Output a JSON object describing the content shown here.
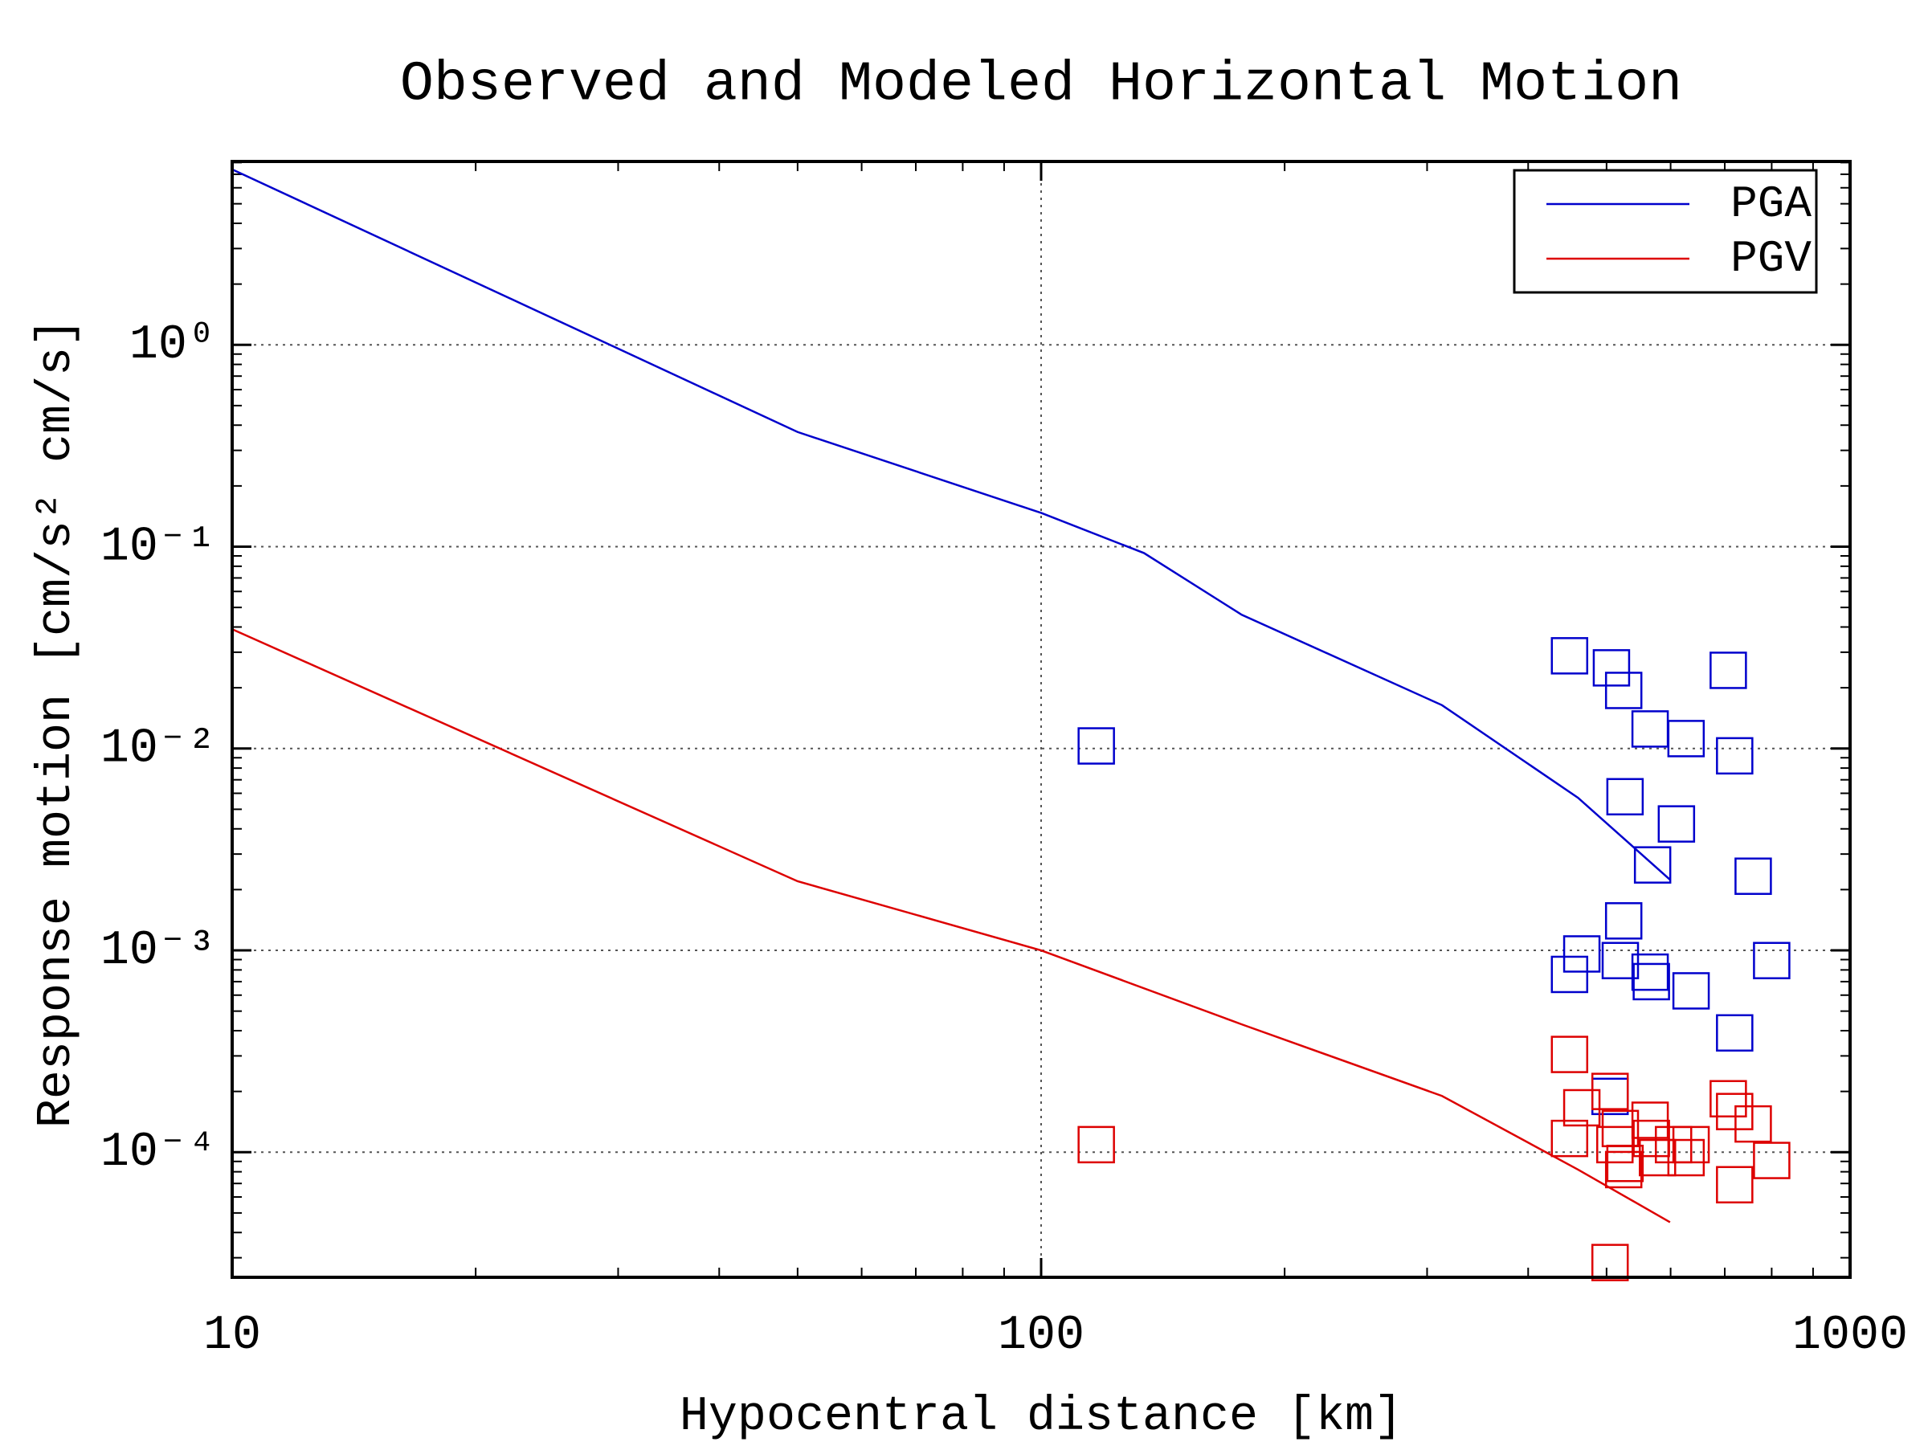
{
  "chart_data": {
    "type": "line",
    "title": "Observed and Modeled Horizontal Motion",
    "x_label": "Hypocentral distance [km]",
    "y_label": "Response motion [cm/s²  cm/s]",
    "x_scale": "log",
    "y_scale": "log",
    "xlim": [
      10,
      1000
    ],
    "xticks": [
      10,
      100,
      1000
    ],
    "ylim": [
      2.4e-05,
      8.1
    ],
    "yticks": [
      {
        "value": 1,
        "label": "10⁰"
      },
      {
        "value": 0.1,
        "label": "10⁻¹"
      },
      {
        "value": 0.01,
        "label": "10⁻²"
      },
      {
        "value": 0.001,
        "label": "10⁻³"
      },
      {
        "value": 0.0001,
        "label": "10⁻⁴"
      }
    ],
    "grid": true,
    "legend": "upper right",
    "series": [
      {
        "name": "PGA",
        "color": "#0000cc",
        "x": [
          10,
          50,
          100,
          134,
          177,
          313,
          461,
          599
        ],
        "values": [
          7.4,
          0.37,
          0.147,
          0.093,
          0.046,
          0.0164,
          0.0057,
          0.00224
        ]
      },
      {
        "name": "PGV",
        "color": "#dd0000",
        "x": [
          10,
          50,
          100,
          177,
          313,
          461,
          599
        ],
        "values": [
          0.039,
          0.0022,
          0.001,
          0.00043,
          0.00019,
          8.2e-05,
          4.5e-05
        ]
      }
    ],
    "points": [
      {
        "color": "#0000cc",
        "marker": "square",
        "x": [
          117,
          450,
          507,
          525,
          566,
          627,
          707,
          720,
          527,
          610,
          570,
          759,
          525,
          466,
          450,
          520,
          566,
          568,
          636,
          800,
          720,
          505
        ],
        "values": [
          0.0103,
          0.0288,
          0.0251,
          0.0194,
          0.0125,
          0.0112,
          0.0244,
          0.0092,
          0.00577,
          0.00423,
          0.00265,
          0.00233,
          0.0014,
          0.00096,
          0.00076,
          0.00089,
          0.00078,
          0.0007,
          0.00063,
          0.00089,
          0.00039,
          0.000189
        ]
      },
      {
        "color": "#dd0000",
        "marker": "square",
        "x": [
          117,
          450,
          505,
          505,
          466,
          450,
          520,
          512,
          527,
          525,
          566,
          568,
          578,
          605,
          636,
          627,
          707,
          720,
          759,
          720,
          800
        ],
        "values": [
          0.000109,
          0.000305,
          0.0002,
          2.84e-05,
          0.000166,
          0.000117,
          0.000131,
          0.000109,
          8.8e-05,
          8.2e-05,
          0.000144,
          0.000117,
          9.4e-05,
          0.000109,
          0.000109,
          9.4e-05,
          0.000184,
          0.000159,
          0.000138,
          6.9e-05,
          9.1e-05
        ]
      }
    ]
  }
}
